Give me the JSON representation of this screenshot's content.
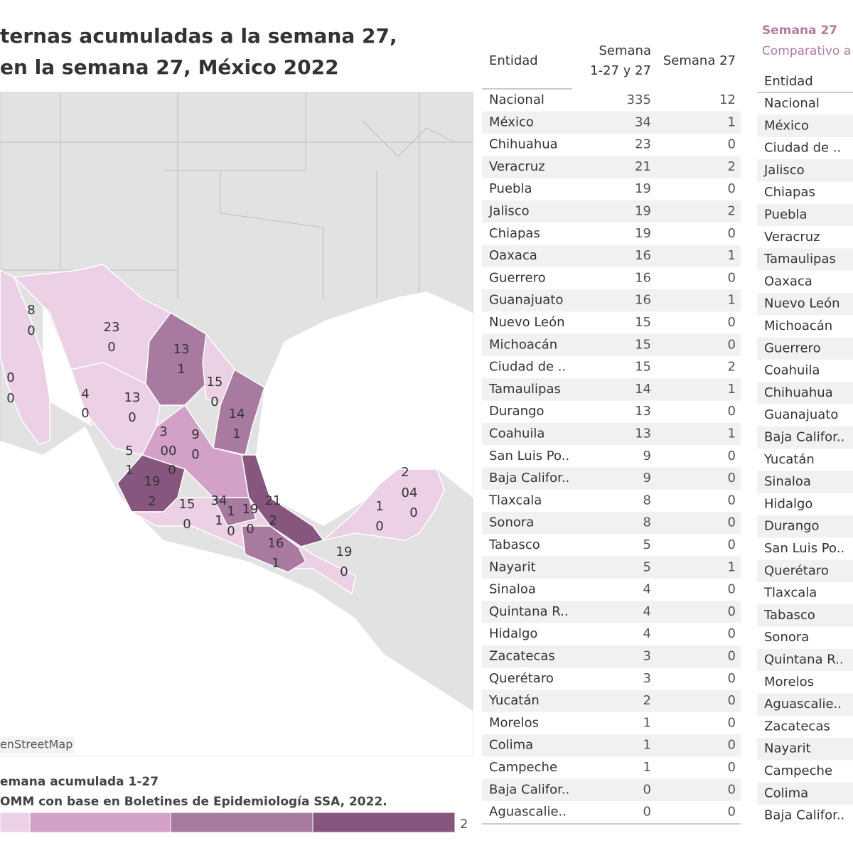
{
  "header": {
    "title_lines": [
      "ternas acumuladas a la semana 27,",
      "en la semana 27, México 2022"
    ]
  },
  "map": {
    "attribution": "enStreetMap",
    "labels": [
      "8",
      "0",
      "23",
      "0",
      "0",
      "0",
      "4",
      "0",
      "13",
      "1",
      "13",
      "0",
      "15",
      "0",
      "14",
      "1",
      "3",
      "00",
      "9",
      "0",
      "5",
      "1",
      "0",
      "19",
      "2",
      "15",
      "0",
      "34",
      "1",
      "1",
      "0",
      "19",
      "0",
      "21",
      "2",
      "16",
      "1",
      "19",
      "0",
      "2",
      "04",
      "0",
      "1",
      "0"
    ]
  },
  "legend": {
    "title": "emana acumulada 1-27",
    "source": "OMM con base en Boletines de Epidemiología SSA, 2022.",
    "end_label": "2",
    "colors": [
      "#ecd0e6",
      "#d3a1c8",
      "#a87a9f",
      "#86567f"
    ]
  },
  "table": {
    "columns": [
      "Entidad",
      "Semana\n1-27 y 27",
      "Semana 27"
    ],
    "rows": [
      [
        "Nacional",
        335,
        12
      ],
      [
        "México",
        34,
        1
      ],
      [
        "Chihuahua",
        23,
        0
      ],
      [
        "Veracruz",
        21,
        2
      ],
      [
        "Puebla",
        19,
        0
      ],
      [
        "Jalisco",
        19,
        2
      ],
      [
        "Chiapas",
        19,
        0
      ],
      [
        "Oaxaca",
        16,
        1
      ],
      [
        "Guerrero",
        16,
        0
      ],
      [
        "Guanajuato",
        16,
        1
      ],
      [
        "Nuevo León",
        15,
        0
      ],
      [
        "Michoacán",
        15,
        0
      ],
      [
        "Ciudad de ..",
        15,
        2
      ],
      [
        "Tamaulipas",
        14,
        1
      ],
      [
        "Durango",
        13,
        0
      ],
      [
        "Coahuila",
        13,
        1
      ],
      [
        "San Luis Po..",
        9,
        0
      ],
      [
        "Baja Califor..",
        9,
        0
      ],
      [
        "Tlaxcala",
        8,
        0
      ],
      [
        "Sonora",
        8,
        0
      ],
      [
        "Tabasco",
        5,
        0
      ],
      [
        "Nayarit",
        5,
        1
      ],
      [
        "Sinaloa",
        4,
        0
      ],
      [
        "Quintana R..",
        4,
        0
      ],
      [
        "Hidalgo",
        4,
        0
      ],
      [
        "Zacatecas",
        3,
        0
      ],
      [
        "Querétaro",
        3,
        0
      ],
      [
        "Yucatán",
        2,
        0
      ],
      [
        "Morelos",
        1,
        0
      ],
      [
        "Colima",
        1,
        0
      ],
      [
        "Campeche",
        1,
        0
      ],
      [
        "Baja Califor..",
        0,
        0
      ],
      [
        "Aguascalie..",
        0,
        0
      ]
    ]
  },
  "table2": {
    "title": "Semana 27",
    "subtitle": "Comparativo a",
    "column": "Entidad",
    "rows": [
      "Nacional",
      "México",
      "Ciudad de ..",
      "Jalisco",
      "Chiapas",
      "Puebla",
      "Veracruz",
      "Tamaulipas",
      "Oaxaca",
      "Nuevo León",
      "Michoacán",
      "Guerrero",
      "Coahuila",
      "Chihuahua",
      "Guanajuato",
      "Baja Califor..",
      "Yucatán",
      "Sinaloa",
      "Hidalgo",
      "Durango",
      "San Luis Po..",
      "Querétaro",
      "Tlaxcala",
      "Tabasco",
      "Sonora",
      "Quintana R..",
      "Morelos",
      "Aguascalie..",
      "Zacatecas",
      "Nayarit",
      "Campeche",
      "Colima",
      "Baja Califor.."
    ]
  }
}
